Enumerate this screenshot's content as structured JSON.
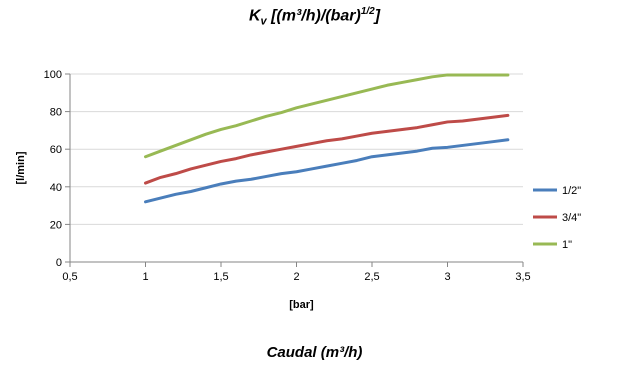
{
  "chart_data": {
    "type": "line",
    "title": "Kv [(m³/h)/(bar)¹/²]",
    "title_parts": {
      "main": "K",
      "sub": "v",
      "rest": " [(m³/h)/(bar)",
      "sup": "1/2",
      "close": "]"
    },
    "subtitle": "Caudal (m³/h)",
    "xlabel": "[bar]",
    "ylabel": "[l/min]",
    "xlim": [
      0.5,
      3.5
    ],
    "ylim": [
      0,
      100
    ],
    "xticks": [
      "0,5",
      "1",
      "1,5",
      "2",
      "2,5",
      "3",
      "3,5"
    ],
    "xtick_values": [
      0.5,
      1,
      1.5,
      2,
      2.5,
      3,
      3.5
    ],
    "yticks": [
      "0",
      "20",
      "40",
      "60",
      "80",
      "100"
    ],
    "ytick_values": [
      0,
      20,
      40,
      60,
      80,
      100
    ],
    "grid": "horizontal",
    "legend_position": "right",
    "x": [
      1.0,
      1.1,
      1.2,
      1.3,
      1.4,
      1.5,
      1.6,
      1.7,
      1.8,
      1.9,
      2.0,
      2.1,
      2.2,
      2.3,
      2.4,
      2.5,
      2.6,
      2.7,
      2.8,
      2.9,
      3.0,
      3.1,
      3.2,
      3.3,
      3.4
    ],
    "series": [
      {
        "name": "1/2\"",
        "color": "#4a7ebb",
        "values": [
          32,
          34,
          36,
          37.5,
          39.5,
          41.5,
          43,
          44,
          45.5,
          47,
          48,
          49.5,
          51,
          52.5,
          54,
          56,
          57,
          58,
          59,
          60.5,
          61,
          62,
          63,
          64,
          65
        ]
      },
      {
        "name": "3/4\"",
        "color": "#be4b48",
        "values": [
          42,
          45,
          47,
          49.5,
          51.5,
          53.5,
          55,
          57,
          58.5,
          60,
          61.5,
          63,
          64.5,
          65.5,
          67,
          68.5,
          69.5,
          70.5,
          71.5,
          73,
          74.5,
          75,
          76,
          77,
          78
        ]
      },
      {
        "name": "1\"",
        "color": "#98b954",
        "values": [
          56,
          59,
          62,
          65,
          68,
          70.5,
          72.5,
          75,
          77.5,
          79.5,
          82,
          84,
          86,
          88,
          90,
          92,
          94,
          95.5,
          97,
          98.5,
          99.5,
          99.5,
          99.5,
          99.5,
          99.5
        ]
      }
    ]
  }
}
